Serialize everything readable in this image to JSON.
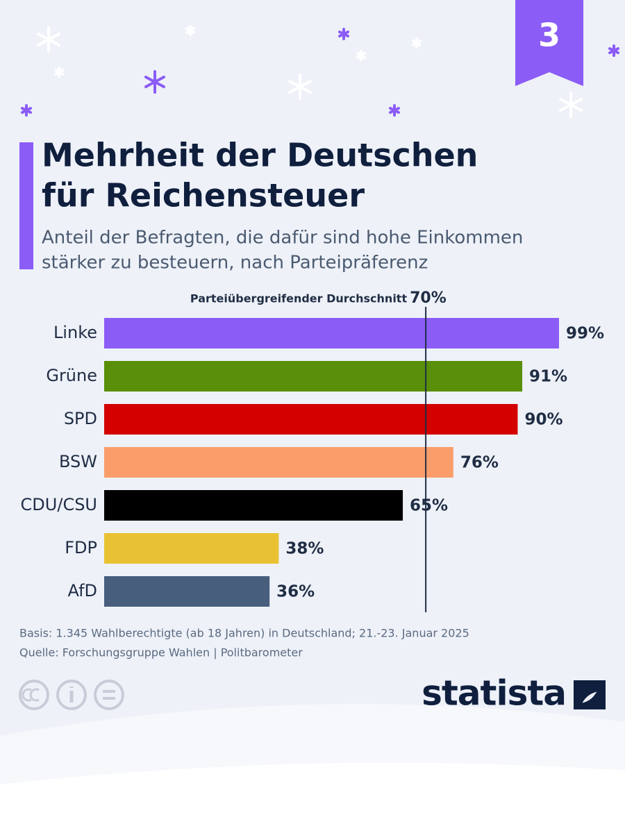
{
  "chart_data": {
    "type": "hbar",
    "badge": "3",
    "title": [
      "Mehrheit der Deutschen",
      "für Reichensteuer"
    ],
    "subtitle": [
      "Anteil der Befragten, die dafür sind hohe Einkommen",
      "stärker zu besteuern, nach Parteipräferenz"
    ],
    "categories": [
      "Linke",
      "Grüne",
      "SPD",
      "BSW",
      "CDU/CSU",
      "FDP",
      "AfD"
    ],
    "values": [
      99,
      91,
      90,
      76,
      65,
      38,
      36
    ],
    "value_labels": [
      "99%",
      "91%",
      "90%",
      "76%",
      "65%",
      "38%",
      "36%"
    ],
    "colors": [
      "#8b5cf6",
      "#5a8f0a",
      "#d40000",
      "#fb9d6b",
      "#000000",
      "#e8c232",
      "#485e7d"
    ],
    "xlim": [
      0,
      100
    ],
    "reference": {
      "text": "Parteiübergreifender Durchschnitt",
      "value": 70,
      "label": "70%"
    },
    "notes": [
      "Basis: 1.345 Wahlberechtigte (ab 18 Jahren) in Deutschland; 21.-23. Januar 2025",
      "Quelle: Forschungsgruppe Wahlen | Politbarometer"
    ],
    "logo": "statista"
  }
}
